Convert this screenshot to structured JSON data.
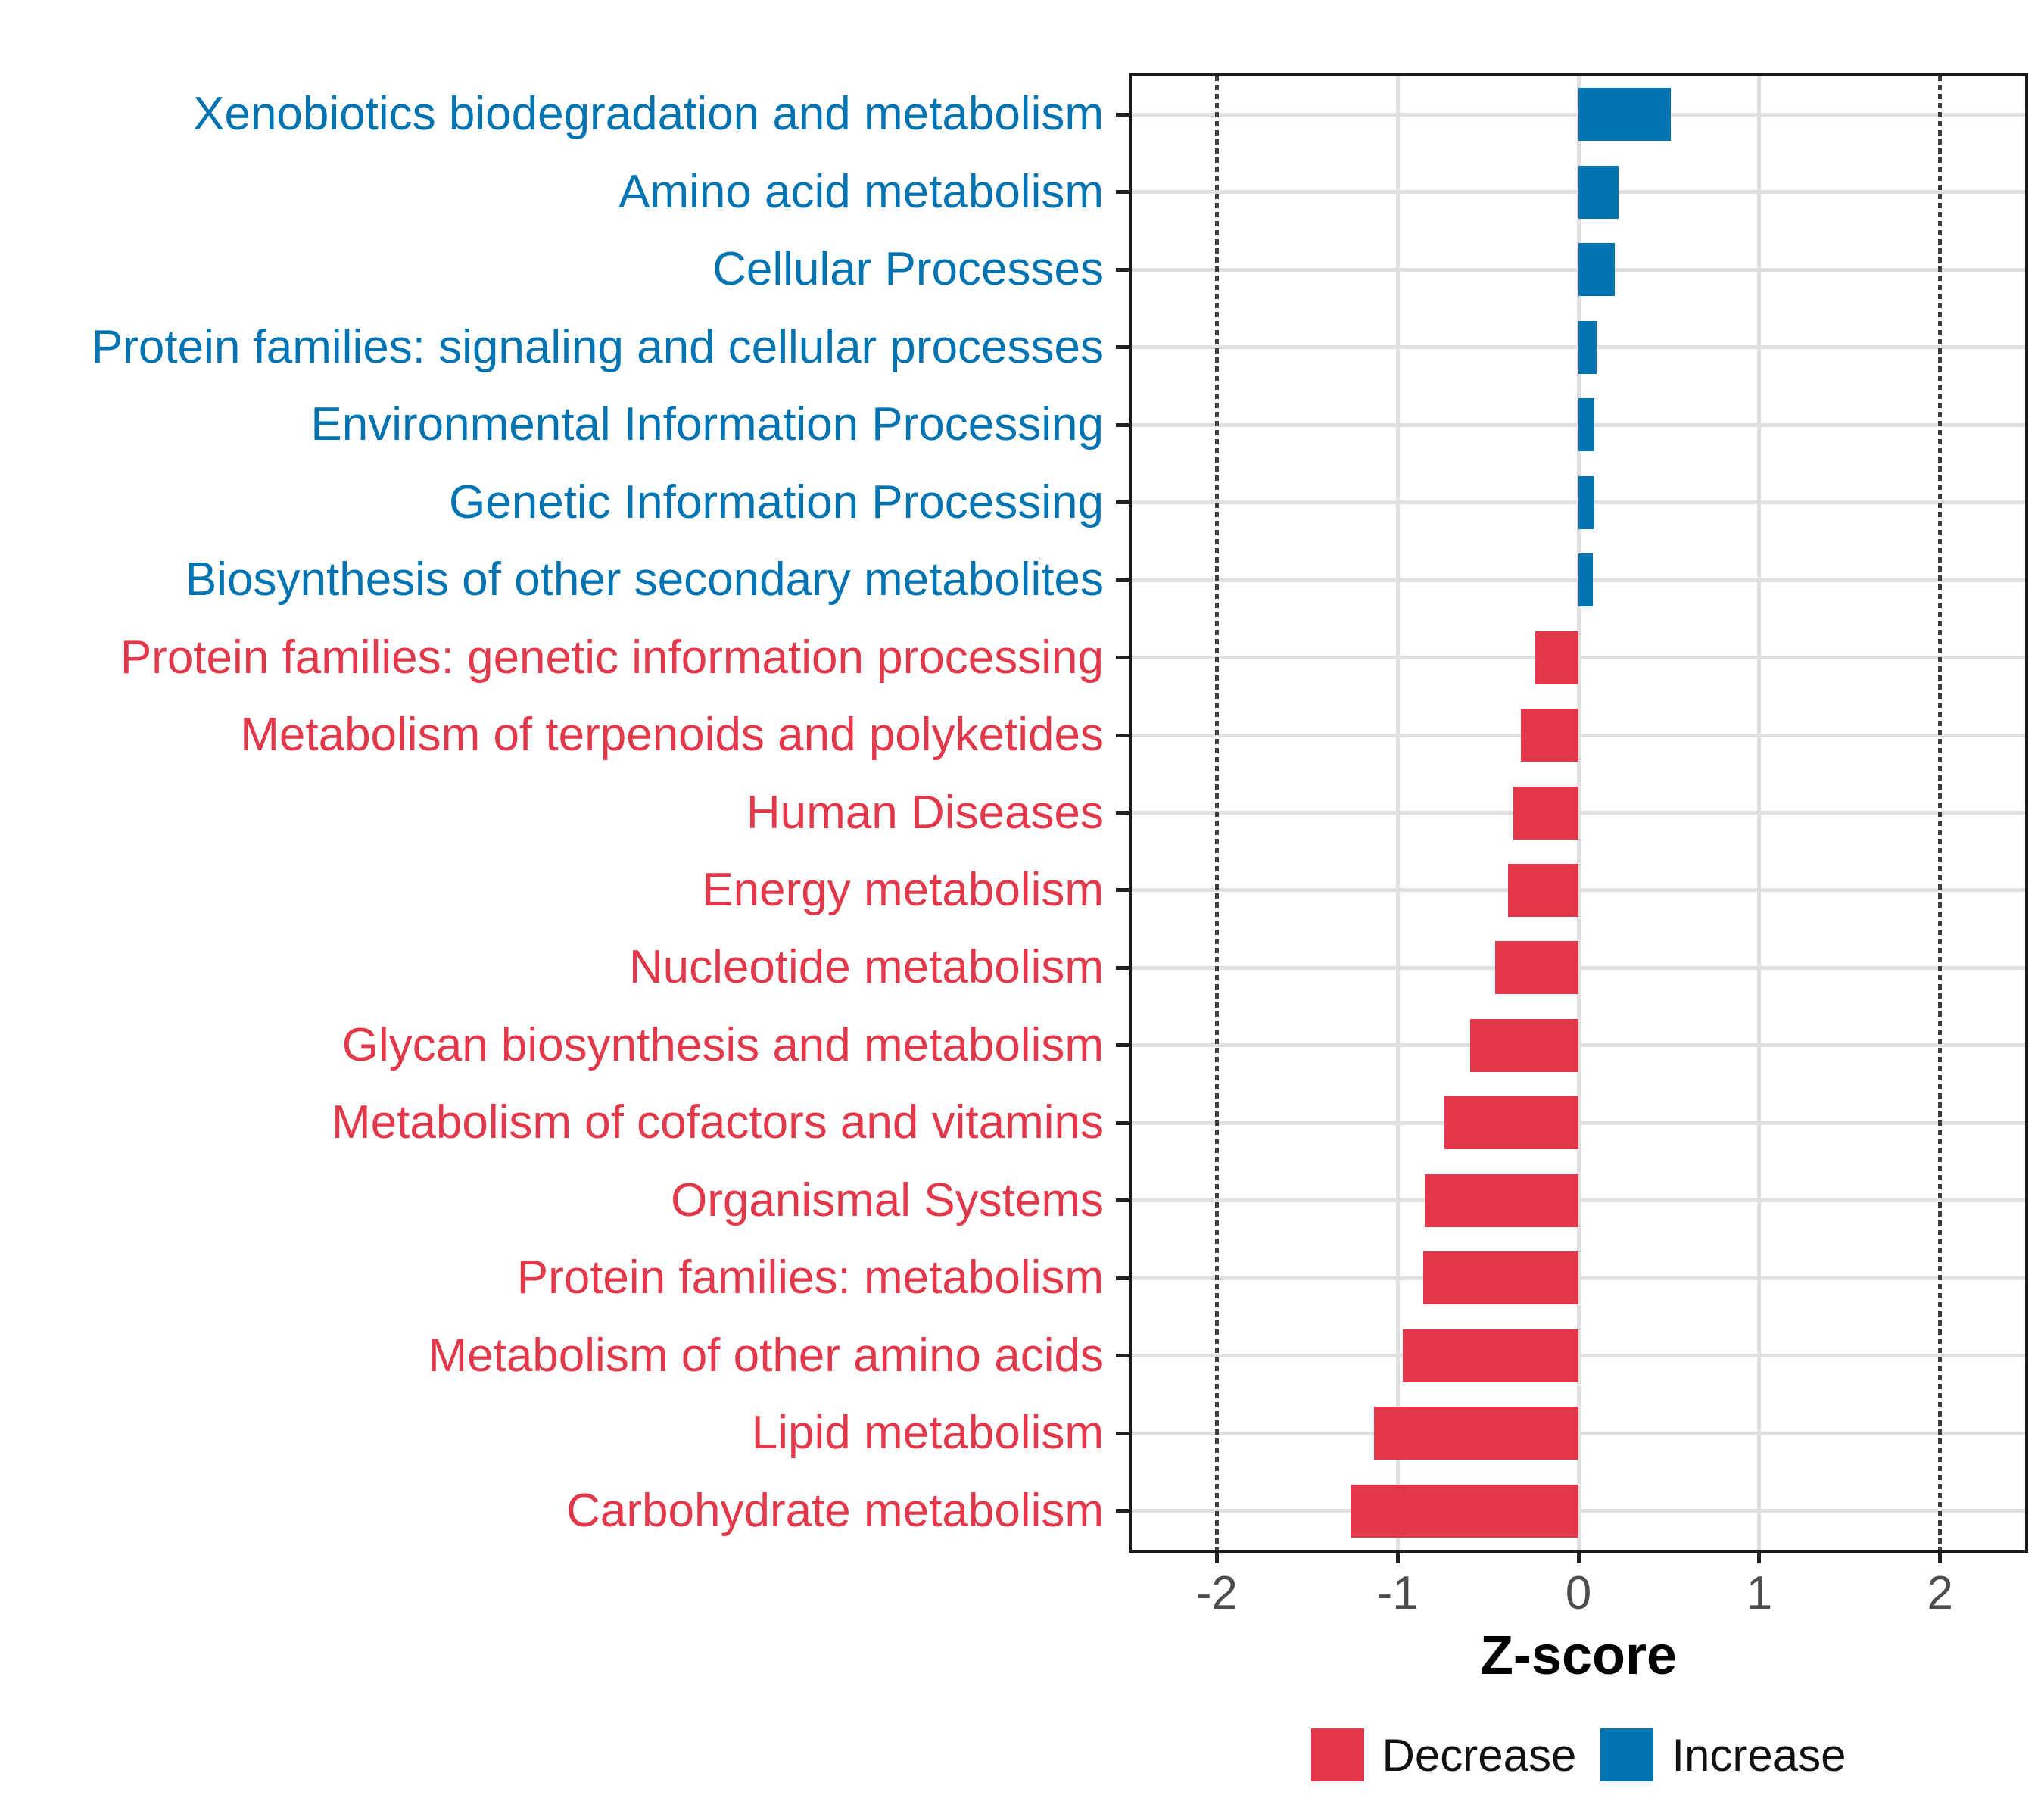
{
  "chart_data": {
    "type": "bar",
    "orientation": "horizontal",
    "xlabel": "Z-score",
    "x_ticks": [
      -2,
      -1,
      0,
      1,
      2
    ],
    "xlim": [
      -2.47,
      2.47
    ],
    "grid": {
      "light_vertical_at": [
        -1,
        0,
        1
      ],
      "dotted_vertical_at": [
        -2,
        2
      ],
      "horizontal_at_each_category": true
    },
    "categories": [
      "Xenobiotics biodegradation and metabolism",
      "Amino acid metabolism",
      "Cellular Processes",
      "Protein families: signaling and cellular processes",
      "Environmental Information Processing",
      "Genetic Information Processing",
      "Biosynthesis of other secondary metabolites",
      "Protein families: genetic information processing",
      "Metabolism of terpenoids and polyketides",
      "Human Diseases",
      "Energy metabolism",
      "Nucleotide metabolism",
      "Glycan biosynthesis and metabolism",
      "Metabolism of cofactors and vitamins",
      "Organismal Systems",
      "Protein families: metabolism",
      "Metabolism of other amino acids",
      "Lipid metabolism",
      "Carbohydrate metabolism"
    ],
    "values": [
      0.51,
      0.22,
      0.2,
      0.1,
      0.09,
      0.09,
      0.08,
      -0.24,
      -0.32,
      -0.36,
      -0.39,
      -0.46,
      -0.6,
      -0.74,
      -0.85,
      -0.86,
      -0.97,
      -1.13,
      -1.26
    ],
    "directions": [
      "Increase",
      "Increase",
      "Increase",
      "Increase",
      "Increase",
      "Increase",
      "Increase",
      "Decrease",
      "Decrease",
      "Decrease",
      "Decrease",
      "Decrease",
      "Decrease",
      "Decrease",
      "Decrease",
      "Decrease",
      "Decrease",
      "Decrease",
      "Decrease"
    ],
    "colors": {
      "increase": "#0073b3",
      "decrease": "#e23849"
    },
    "legend_position": "bottom"
  },
  "axis": {
    "title": "Z-score",
    "tick_labels": [
      "-2",
      "-1",
      "0",
      "1",
      "2"
    ]
  },
  "legend": {
    "decrease_label": "Decrease",
    "increase_label": "Increase"
  }
}
